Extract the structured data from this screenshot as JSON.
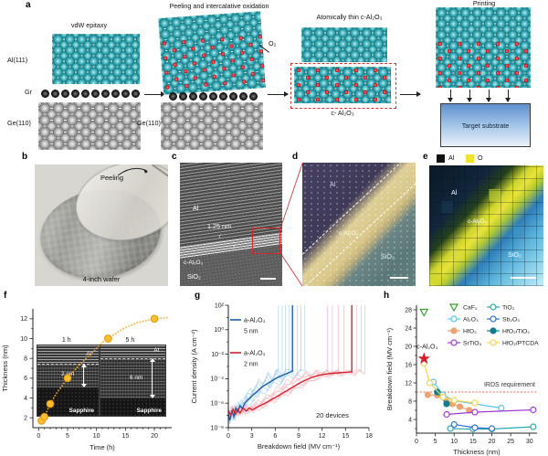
{
  "panels": {
    "a": "a",
    "b": "b",
    "c": "c",
    "d": "d",
    "e": "e",
    "f": "f",
    "g": "g",
    "h": "h"
  },
  "panel_a": {
    "step1": {
      "title": "vdW epitaxy",
      "al": "Al(111)",
      "gr": "Gr",
      "ge": "Ge(110)"
    },
    "step2": {
      "title": "Peeling and intercalative oxidation",
      "o2": "O₂",
      "ge": "Ge(110)"
    },
    "step3": {
      "title": "Atomically thin c-Al₂O₃",
      "film": "c- Al₂O₃"
    },
    "step4": {
      "title": "Printing",
      "substrate": "Target substrate"
    }
  },
  "panel_b": {
    "action": "Peeling",
    "caption": "4-inch wafer"
  },
  "panel_c": {
    "metal": "Al",
    "thickness": "1.25 nm",
    "film": "c-Al₂O₃",
    "substrate": "SiO₂"
  },
  "panel_d": {
    "metal": "Al",
    "film": "c-Al₂O₃",
    "substrate": "SiO₂"
  },
  "panel_e": {
    "legend": [
      {
        "swatch": "#111111",
        "label": "Al"
      },
      {
        "swatch": "#f2e22e",
        "label": "O"
      }
    ],
    "metal": "Al",
    "film": "c-Al₂O₃",
    "substrate": "SiO₂"
  },
  "chart_data": [
    {
      "id": "f",
      "type": "scatter",
      "xlabel": "Time (h)",
      "ylabel": "Thickness (nm)",
      "xlim": [
        -1,
        23
      ],
      "ylim": [
        1,
        13
      ],
      "xticks": [
        0,
        5,
        10,
        15,
        20
      ],
      "yticks": [
        2,
        4,
        6,
        8,
        10,
        12
      ],
      "marker_color": "#fbc02d",
      "marker_edge": "#e8960c",
      "line_color": "#f5a91e",
      "points": [
        [
          0.5,
          1.7
        ],
        [
          1,
          2.1
        ],
        [
          2,
          3.4
        ],
        [
          5,
          6
        ],
        [
          12,
          10
        ],
        [
          20,
          12
        ]
      ],
      "curve": [
        [
          0.3,
          1.6
        ],
        [
          0.5,
          1.7
        ],
        [
          1,
          2.1
        ],
        [
          2,
          3.4
        ],
        [
          3,
          4.4
        ],
        [
          4,
          5.2
        ],
        [
          5,
          6
        ],
        [
          6.5,
          7
        ],
        [
          8,
          7.9
        ],
        [
          9.5,
          8.7
        ],
        [
          11,
          9.6
        ],
        [
          12,
          10
        ],
        [
          13.5,
          10.6
        ],
        [
          15,
          11.1
        ],
        [
          17,
          11.6
        ],
        [
          18.5,
          11.8
        ],
        [
          20,
          12
        ],
        [
          21.3,
          12.08
        ],
        [
          22.5,
          12.12
        ]
      ],
      "insets": [
        {
          "time_label": "1 h",
          "metal": "Al",
          "thickness": "2 nm",
          "substrate": "Sapphire"
        },
        {
          "time_label": "5 h",
          "metal": "Al",
          "thickness": "6 nm",
          "substrate": "Sapphire"
        }
      ]
    },
    {
      "id": "g",
      "type": "line",
      "xlabel": "Breakdown field (MV cm⁻¹)",
      "ylabel": "Current density (A cm⁻²)",
      "xlim": [
        0,
        18
      ],
      "xticks": [
        0,
        3,
        6,
        9,
        12,
        15,
        18
      ],
      "ylim_exp": [
        -8,
        2
      ],
      "ytick_exps": [
        2,
        0,
        -2,
        -4,
        -6,
        -8
      ],
      "ytick_labels": [
        "10²",
        "10⁰",
        "10⁻²",
        "10⁻⁴",
        "10⁻⁶",
        "10⁻⁸"
      ],
      "annotation": "20 devices",
      "series": [
        {
          "label": "a-Al₂O₃",
          "sublabel": "5 nm",
          "color": "#1a5fa8",
          "faint": "#a9d2f0",
          "breakdown": 8.2,
          "points": [
            [
              0,
              -6.9
            ],
            [
              0.2,
              -7.4
            ],
            [
              0.45,
              -6.6
            ],
            [
              0.7,
              -7.1
            ],
            [
              0.95,
              -6.4
            ],
            [
              1.2,
              -6.7
            ],
            [
              1.5,
              -6.2
            ],
            [
              1.8,
              -6.45
            ],
            [
              2.1,
              -6.0
            ],
            [
              2.45,
              -5.75
            ],
            [
              2.8,
              -5.55
            ],
            [
              3.2,
              -5.3
            ],
            [
              3.6,
              -5.1
            ],
            [
              4.0,
              -4.85
            ],
            [
              4.5,
              -4.6
            ],
            [
              5.0,
              -4.4
            ],
            [
              5.5,
              -4.2
            ],
            [
              6.0,
              -4.0
            ],
            [
              6.5,
              -3.85
            ],
            [
              7.0,
              -3.7
            ],
            [
              7.4,
              -3.6
            ],
            [
              7.8,
              -3.5
            ],
            [
              8.1,
              -3.4
            ]
          ],
          "faint_breakdowns": [
            6.4,
            6.9,
            7.3,
            7.8,
            8.8,
            9.3,
            9.8
          ]
        },
        {
          "label": "a-Al₂O₃",
          "sublabel": "2 nm",
          "color": "#d42330",
          "faint": "#f5b9c1",
          "breakdown": 15.8,
          "points": [
            [
              0,
              -6.6
            ],
            [
              0.3,
              -7.0
            ],
            [
              0.6,
              -6.5
            ],
            [
              0.9,
              -6.9
            ],
            [
              1.2,
              -6.5
            ],
            [
              1.5,
              -6.8
            ],
            [
              1.9,
              -6.4
            ],
            [
              2.3,
              -6.65
            ],
            [
              2.7,
              -6.4
            ],
            [
              3.1,
              -6.55
            ],
            [
              3.6,
              -6.35
            ],
            [
              4.1,
              -6.2
            ],
            [
              4.7,
              -6.0
            ],
            [
              5.4,
              -5.75
            ],
            [
              6.1,
              -5.5
            ],
            [
              6.9,
              -5.2
            ],
            [
              7.7,
              -4.9
            ],
            [
              8.5,
              -4.6
            ],
            [
              9.3,
              -4.3
            ],
            [
              10.1,
              -4.05
            ],
            [
              10.9,
              -3.85
            ],
            [
              11.7,
              -3.7
            ],
            [
              12.5,
              -3.62
            ],
            [
              13.3,
              -3.56
            ],
            [
              14.1,
              -3.52
            ],
            [
              15.0,
              -3.48
            ],
            [
              15.7,
              -3.45
            ]
          ],
          "faint_breakdowns": [
            12.7,
            13.3,
            14.1,
            14.8,
            16.4,
            17.0,
            17.5
          ]
        }
      ]
    },
    {
      "id": "h",
      "type": "scatter",
      "xlabel": "Thickness (nm)",
      "ylabel": "Breakdown field (MV cm⁻¹)",
      "xlim": [
        0,
        32
      ],
      "ylim": [
        1,
        29
      ],
      "xticks": [
        0,
        5,
        10,
        15,
        20,
        25,
        30
      ],
      "yticks": [
        4,
        8,
        12,
        16,
        20,
        24,
        28
      ],
      "reference_line": {
        "y": 10,
        "label": "IRDS requirement",
        "color": "#ef8276"
      },
      "highlight": {
        "label": "c-Al₂O₃",
        "x": 2,
        "y": 17.3,
        "marker": "star",
        "color": "#d81e2c"
      },
      "series": [
        {
          "name": "CaF₂",
          "color": "#35a12e",
          "marker": "triangle-down",
          "open": true,
          "line": false,
          "legend_col": 0,
          "points": [
            [
              2,
              27.5
            ]
          ]
        },
        {
          "name": "Al₂O₃",
          "color": "#58c3ec",
          "marker": "circle",
          "open": true,
          "line": true,
          "legend_col": 0,
          "points": [
            [
              4.5,
              12.2
            ],
            [
              7,
              9.4
            ],
            [
              10,
              8.1
            ],
            [
              22.5,
              6.5
            ]
          ]
        },
        {
          "name": "HfO₂",
          "color": "#eda26f",
          "marker": "circle",
          "open": false,
          "line": true,
          "legend_col": 0,
          "points": [
            [
              3,
              9.4
            ],
            [
              5.5,
              9.3
            ],
            [
              8,
              7.8
            ],
            [
              9.5,
              7.4
            ],
            [
              11.5,
              6.8
            ],
            [
              14,
              6.0
            ]
          ]
        },
        {
          "name": "SrTiO₃",
          "color": "#a238d8",
          "marker": "circle",
          "open": true,
          "line": true,
          "legend_col": 0,
          "points": [
            [
              8,
              5.1
            ],
            [
              15.5,
              5.6
            ],
            [
              31,
              6.1
            ]
          ]
        },
        {
          "name": "TiO₂",
          "color": "#2ba8b4",
          "marker": "circle",
          "open": true,
          "line": true,
          "legend_col": 1,
          "points": [
            [
              9,
              2.0
            ],
            [
              15,
              1.9
            ],
            [
              20,
              1.9
            ],
            [
              31,
              2.4
            ]
          ]
        },
        {
          "name": "Sb₂O₃",
          "color": "#2c6fd6",
          "marker": "circle",
          "open": true,
          "line": true,
          "legend_col": 1,
          "points": [
            [
              10,
              2.9
            ],
            [
              15.5,
              2.2
            ],
            [
              20,
              2.0
            ]
          ]
        },
        {
          "name": "HfO₂/TiO₂",
          "color": "#0d7f8d",
          "marker": "circle",
          "open": false,
          "line": true,
          "legend_col": 1,
          "points": [
            [
              5.5,
              10
            ],
            [
              8,
              7.4
            ]
          ]
        },
        {
          "name": "HfO₂/PTCDA",
          "color": "#f6d44f",
          "marker": "circle",
          "open": true,
          "line": true,
          "legend_col": 1,
          "points": [
            [
              2,
              16.3
            ],
            [
              3.5,
              12
            ],
            [
              7,
              8.9
            ],
            [
              10,
              8.2
            ],
            [
              15.5,
              7.6
            ]
          ]
        }
      ]
    }
  ]
}
